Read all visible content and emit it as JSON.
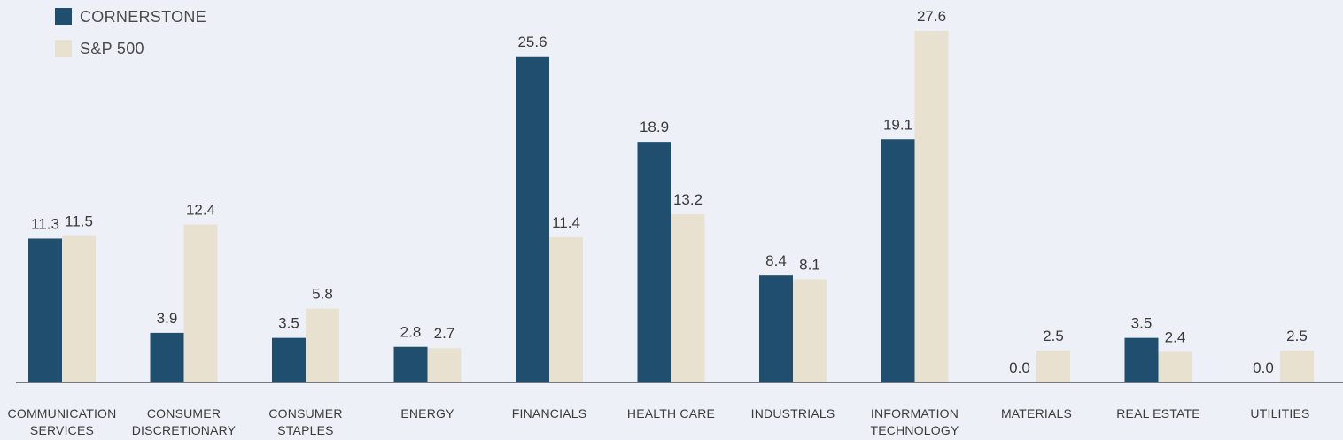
{
  "chart_data": {
    "type": "bar",
    "title": "",
    "xlabel": "",
    "ylabel": "",
    "ylim": [
      0,
      28
    ],
    "grid": false,
    "legend_position": "top-left",
    "categories": [
      [
        "COMMUNICATION",
        "SERVICES"
      ],
      [
        "CONSUMER",
        "DISCRETIONARY"
      ],
      [
        "CONSUMER",
        "STAPLES"
      ],
      [
        "ENERGY"
      ],
      [
        "FINANCIALS"
      ],
      [
        "HEALTH CARE"
      ],
      [
        "INDUSTRIALS"
      ],
      [
        "INFORMATION",
        "TECHNOLOGY"
      ],
      [
        "MATERIALS"
      ],
      [
        "REAL ESTATE"
      ],
      [
        "UTILITIES"
      ]
    ],
    "series": [
      {
        "name": "CORNERSTONE",
        "color": "#1f4e6e",
        "values": [
          11.3,
          3.9,
          3.5,
          2.8,
          25.6,
          18.9,
          8.4,
          19.1,
          0.0,
          3.5,
          0.0
        ],
        "labels": [
          "11.3",
          "3.9",
          "3.5",
          "2.8",
          "25.6",
          "18.9",
          "8.4",
          "19.1",
          "0.0",
          "3.5",
          "0.0"
        ]
      },
      {
        "name": "S&P 500",
        "color": "#e8e1cf",
        "values": [
          11.5,
          12.4,
          5.8,
          2.7,
          11.4,
          13.2,
          8.1,
          27.6,
          2.5,
          2.4,
          2.5
        ],
        "labels": [
          "11.5",
          "12.4",
          "5.8",
          "2.7",
          "11.4",
          "13.2",
          "8.1",
          "27.6",
          "2.5",
          "2.4",
          "2.5"
        ]
      }
    ],
    "axis_color": "#7a7a7a"
  }
}
